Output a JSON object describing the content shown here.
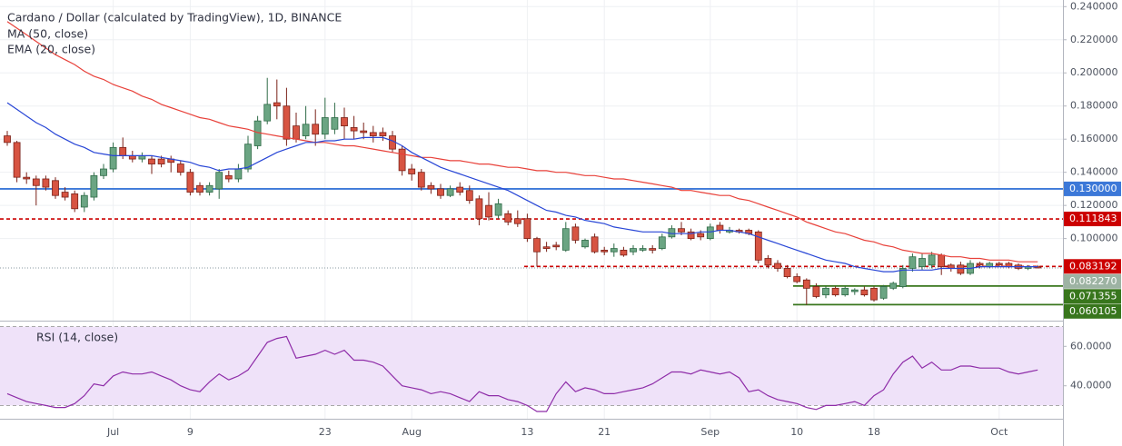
{
  "chart_data": {
    "type": "candlestick",
    "title": "Cardano / Dollar (calculated by TradingView), 1D, BINANCE",
    "categories": [
      null,
      null,
      null,
      null,
      null,
      null,
      null,
      null,
      null,
      null,
      null,
      "Jul",
      null,
      null,
      null,
      null,
      null,
      null,
      null,
      "9",
      null,
      null,
      null,
      null,
      null,
      null,
      null,
      null,
      null,
      null,
      null,
      null,
      null,
      "23",
      null,
      null,
      null,
      null,
      null,
      null,
      null,
      null,
      "Aug",
      null,
      null,
      null,
      null,
      null,
      null,
      null,
      null,
      null,
      null,
      null,
      "13",
      null,
      null,
      null,
      null,
      null,
      null,
      null,
      "21",
      null,
      null,
      null,
      null,
      null,
      null,
      null,
      null,
      null,
      null,
      "Sep",
      null,
      null,
      null,
      null,
      null,
      null,
      null,
      null,
      "10",
      null,
      null,
      null,
      null,
      null,
      null,
      null,
      "18",
      null,
      null,
      null,
      null,
      null,
      null,
      null,
      null,
      null,
      null,
      null,
      null,
      "Oct",
      null,
      null,
      null,
      null
    ],
    "open": [
      0.162,
      0.158,
      0.137,
      0.136,
      0.136,
      0.135,
      0.128,
      0.127,
      0.119,
      0.125,
      0.138,
      0.142,
      0.155,
      0.15,
      0.148,
      0.148,
      0.148,
      0.148,
      0.145,
      0.14,
      0.132,
      0.128,
      0.13,
      0.138,
      0.136,
      0.142,
      0.156,
      0.171,
      0.182,
      0.18,
      0.168,
      0.162,
      0.169,
      0.163,
      0.166,
      0.173,
      0.167,
      0.165,
      0.164,
      0.164,
      0.162,
      0.154,
      0.142,
      0.14,
      0.132,
      0.13,
      0.126,
      0.131,
      0.129,
      0.124,
      0.12,
      0.114,
      0.115,
      0.112,
      0.112,
      0.1,
      0.095,
      0.096,
      0.093,
      0.107,
      0.095,
      0.101,
      0.093,
      0.092,
      0.093,
      0.092,
      0.093,
      0.094,
      0.094,
      0.101,
      0.106,
      0.104,
      0.103,
      0.1,
      0.108,
      0.104,
      0.105,
      0.105,
      0.104,
      0.088,
      0.085,
      0.082,
      0.077,
      0.075,
      0.071,
      0.066,
      0.07,
      0.066,
      0.068,
      0.069,
      0.07,
      0.064,
      0.07,
      0.071,
      0.082,
      0.083,
      0.084,
      0.09,
      0.084,
      0.084,
      0.079,
      0.085,
      0.083,
      0.085,
      0.085,
      0.084,
      0.082,
      0.083
    ],
    "high": [
      0.165,
      0.159,
      0.14,
      0.138,
      0.138,
      0.137,
      0.131,
      0.129,
      0.128,
      0.14,
      0.145,
      0.158,
      0.161,
      0.153,
      0.152,
      0.15,
      0.15,
      0.15,
      0.147,
      0.142,
      0.134,
      0.134,
      0.142,
      0.141,
      0.145,
      0.162,
      0.174,
      0.197,
      0.196,
      0.191,
      0.176,
      0.18,
      0.178,
      0.185,
      0.182,
      0.179,
      0.174,
      0.17,
      0.168,
      0.167,
      0.165,
      0.156,
      0.145,
      0.142,
      0.134,
      0.133,
      0.132,
      0.134,
      0.132,
      0.126,
      0.128,
      0.124,
      0.117,
      0.117,
      0.115,
      0.101,
      0.098,
      0.098,
      0.11,
      0.109,
      0.1,
      0.103,
      0.095,
      0.097,
      0.095,
      0.096,
      0.096,
      0.096,
      0.103,
      0.108,
      0.11,
      0.106,
      0.105,
      0.109,
      0.11,
      0.107,
      0.106,
      0.106,
      0.105,
      0.09,
      0.087,
      0.084,
      0.079,
      0.076,
      0.073,
      0.071,
      0.071,
      0.071,
      0.07,
      0.071,
      0.071,
      0.072,
      0.074,
      0.084,
      0.091,
      0.091,
      0.092,
      0.091,
      0.085,
      0.086,
      0.087,
      0.086,
      0.086,
      0.086,
      0.086,
      0.085,
      0.084,
      0.084
    ],
    "low": [
      0.156,
      0.134,
      0.133,
      0.12,
      0.129,
      0.124,
      0.123,
      0.116,
      0.116,
      0.123,
      0.136,
      0.14,
      0.148,
      0.146,
      0.146,
      0.139,
      0.143,
      0.14,
      0.138,
      0.126,
      0.126,
      0.126,
      0.124,
      0.134,
      0.134,
      0.14,
      0.154,
      0.169,
      0.172,
      0.156,
      0.158,
      0.16,
      0.156,
      0.16,
      0.163,
      0.16,
      0.16,
      0.16,
      0.158,
      0.159,
      0.152,
      0.138,
      0.135,
      0.129,
      0.127,
      0.124,
      0.125,
      0.126,
      0.121,
      0.108,
      0.111,
      0.112,
      0.108,
      0.107,
      0.098,
      0.083,
      0.092,
      0.093,
      0.092,
      0.097,
      0.094,
      0.091,
      0.09,
      0.089,
      0.089,
      0.09,
      0.092,
      0.091,
      0.093,
      0.1,
      0.102,
      0.099,
      0.099,
      0.099,
      0.103,
      0.103,
      0.103,
      0.102,
      0.085,
      0.082,
      0.08,
      0.076,
      0.073,
      0.06,
      0.064,
      0.064,
      0.065,
      0.065,
      0.066,
      0.065,
      0.062,
      0.063,
      0.069,
      0.07,
      0.08,
      0.081,
      0.082,
      0.078,
      0.08,
      0.078,
      0.078,
      0.082,
      0.082,
      0.083,
      0.082,
      0.081,
      0.081,
      0.082
    ],
    "close": [
      0.158,
      0.137,
      0.136,
      0.132,
      0.131,
      0.126,
      0.125,
      0.118,
      0.126,
      0.138,
      0.142,
      0.155,
      0.15,
      0.148,
      0.15,
      0.145,
      0.145,
      0.146,
      0.14,
      0.128,
      0.128,
      0.132,
      0.14,
      0.136,
      0.142,
      0.157,
      0.171,
      0.181,
      0.18,
      0.16,
      0.16,
      0.169,
      0.163,
      0.173,
      0.173,
      0.168,
      0.165,
      0.164,
      0.162,
      0.162,
      0.154,
      0.141,
      0.139,
      0.131,
      0.13,
      0.126,
      0.13,
      0.128,
      0.123,
      0.112,
      0.113,
      0.121,
      0.11,
      0.109,
      0.1,
      0.092,
      0.094,
      0.095,
      0.106,
      0.099,
      0.099,
      0.092,
      0.092,
      0.094,
      0.09,
      0.094,
      0.094,
      0.093,
      0.101,
      0.106,
      0.104,
      0.1,
      0.101,
      0.107,
      0.105,
      0.105,
      0.104,
      0.103,
      0.087,
      0.084,
      0.082,
      0.077,
      0.074,
      0.07,
      0.065,
      0.07,
      0.066,
      0.07,
      0.069,
      0.066,
      0.063,
      0.071,
      0.073,
      0.082,
      0.089,
      0.088,
      0.09,
      0.083,
      0.082,
      0.079,
      0.085,
      0.084,
      0.085,
      0.084,
      0.083,
      0.082,
      0.083,
      0.08227
    ],
    "up_color": "#6ba583",
    "down_color": "#d75442",
    "series": [
      {
        "name": "MA (50, close)",
        "color": "#e8413a",
        "values": [
          0.231,
          0.227,
          0.223,
          0.219,
          0.215,
          0.211,
          0.208,
          0.205,
          0.201,
          0.198,
          0.196,
          0.193,
          0.191,
          0.189,
          0.186,
          0.184,
          0.181,
          0.179,
          0.177,
          0.175,
          0.173,
          0.172,
          0.17,
          0.168,
          0.167,
          0.166,
          0.164,
          0.163,
          0.162,
          0.161,
          0.16,
          0.159,
          0.158,
          0.158,
          0.157,
          0.156,
          0.156,
          0.155,
          0.154,
          0.153,
          0.152,
          0.151,
          0.15,
          0.149,
          0.149,
          0.148,
          0.147,
          0.147,
          0.146,
          0.145,
          0.145,
          0.144,
          0.143,
          0.143,
          0.142,
          0.141,
          0.141,
          0.14,
          0.14,
          0.139,
          0.138,
          0.138,
          0.137,
          0.136,
          0.136,
          0.135,
          0.134,
          0.133,
          0.132,
          0.131,
          0.129,
          0.129,
          0.128,
          0.127,
          0.126,
          0.126,
          0.124,
          0.123,
          0.121,
          0.119,
          0.117,
          0.115,
          0.113,
          0.11,
          0.108,
          0.106,
          0.104,
          0.103,
          0.101,
          0.099,
          0.098,
          0.096,
          0.095,
          0.093,
          0.092,
          0.091,
          0.091,
          0.09,
          0.089,
          0.089,
          0.088,
          0.088,
          0.087,
          0.087,
          0.087,
          0.086,
          0.086,
          0.086
        ]
      },
      {
        "name": "EMA (20, close)",
        "color": "#2846d6",
        "values": [
          0.182,
          0.178,
          0.174,
          0.17,
          0.167,
          0.163,
          0.16,
          0.157,
          0.155,
          0.152,
          0.151,
          0.15,
          0.15,
          0.15,
          0.15,
          0.15,
          0.149,
          0.148,
          0.147,
          0.146,
          0.144,
          0.143,
          0.141,
          0.142,
          0.142,
          0.143,
          0.146,
          0.149,
          0.152,
          0.154,
          0.156,
          0.158,
          0.158,
          0.159,
          0.159,
          0.16,
          0.16,
          0.161,
          0.161,
          0.161,
          0.159,
          0.156,
          0.152,
          0.149,
          0.146,
          0.143,
          0.141,
          0.139,
          0.137,
          0.135,
          0.133,
          0.131,
          0.129,
          0.126,
          0.123,
          0.12,
          0.117,
          0.116,
          0.114,
          0.113,
          0.111,
          0.11,
          0.109,
          0.107,
          0.106,
          0.105,
          0.104,
          0.104,
          0.104,
          0.103,
          0.103,
          0.103,
          0.104,
          0.104,
          0.105,
          0.105,
          0.104,
          0.103,
          0.101,
          0.099,
          0.097,
          0.095,
          0.093,
          0.091,
          0.089,
          0.087,
          0.086,
          0.085,
          0.083,
          0.082,
          0.081,
          0.08,
          0.08,
          0.081,
          0.081,
          0.081,
          0.081,
          0.082,
          0.082,
          0.082,
          0.082,
          0.083,
          0.083,
          0.083,
          0.083,
          0.083,
          0.083,
          0.083
        ]
      }
    ],
    "ylim": [
      0.051,
      0.244
    ],
    "yticks": [
      {
        "value": 0.24,
        "label": "0.240000"
      },
      {
        "value": 0.22,
        "label": "0.220000"
      },
      {
        "value": 0.2,
        "label": "0.200000"
      },
      {
        "value": 0.18,
        "label": "0.180000"
      },
      {
        "value": 0.16,
        "label": "0.160000"
      },
      {
        "value": 0.14,
        "label": "0.140000"
      },
      {
        "value": 0.12,
        "label": "0.120000"
      },
      {
        "value": 0.1,
        "label": "0.100000"
      }
    ],
    "grid": true,
    "levels": [
      {
        "value": 0.13,
        "label": "0.130000",
        "color": "#3c78d8",
        "style": "solid"
      },
      {
        "value": 0.111843,
        "label": "0.111843",
        "color": "#cc0000",
        "style": "dashed"
      },
      {
        "value": 0.083192,
        "label": "0.083192",
        "color": "#cc0000",
        "style": "dashed"
      },
      {
        "value": 0.071355,
        "label": "0.071355",
        "color": "#38761d",
        "style": "solid"
      },
      {
        "value": 0.060105,
        "label": "0.060105",
        "color": "#38761d",
        "style": "solid"
      }
    ],
    "last_price": {
      "value": 0.08227,
      "label": "0.082270",
      "color": "#9db3a3"
    },
    "rsi": {
      "name": "RSI (14, close)",
      "color": "#8e2ca8",
      "values": [
        36,
        34,
        32,
        31,
        30,
        29,
        29,
        31,
        35,
        41,
        40,
        45,
        47,
        46,
        46,
        47,
        45,
        43,
        40,
        38,
        37,
        42,
        46,
        43,
        45,
        48,
        55,
        62,
        64,
        65,
        54,
        55,
        56,
        58,
        56,
        58,
        53,
        53,
        52,
        50,
        45,
        40,
        39,
        38,
        36,
        37,
        36,
        34,
        32,
        37,
        35,
        35,
        33,
        32,
        30,
        27,
        27,
        36,
        42,
        37,
        39,
        38,
        36,
        36,
        37,
        38,
        39,
        41,
        44,
        47,
        47,
        46,
        48,
        47,
        46,
        47,
        44,
        37,
        38,
        35,
        33,
        32,
        31,
        29,
        28,
        30,
        30,
        31,
        32,
        30,
        35,
        38,
        46,
        52,
        55,
        49,
        52,
        48,
        48,
        50,
        50,
        49,
        49,
        49,
        47,
        46,
        47,
        48
      ],
      "ylim": [
        23.3,
        72.1
      ],
      "yticks": [
        {
          "value": 60,
          "label": "60.0000"
        },
        {
          "value": 40,
          "label": "40.0000"
        }
      ],
      "bands": [
        30,
        70
      ]
    }
  }
}
